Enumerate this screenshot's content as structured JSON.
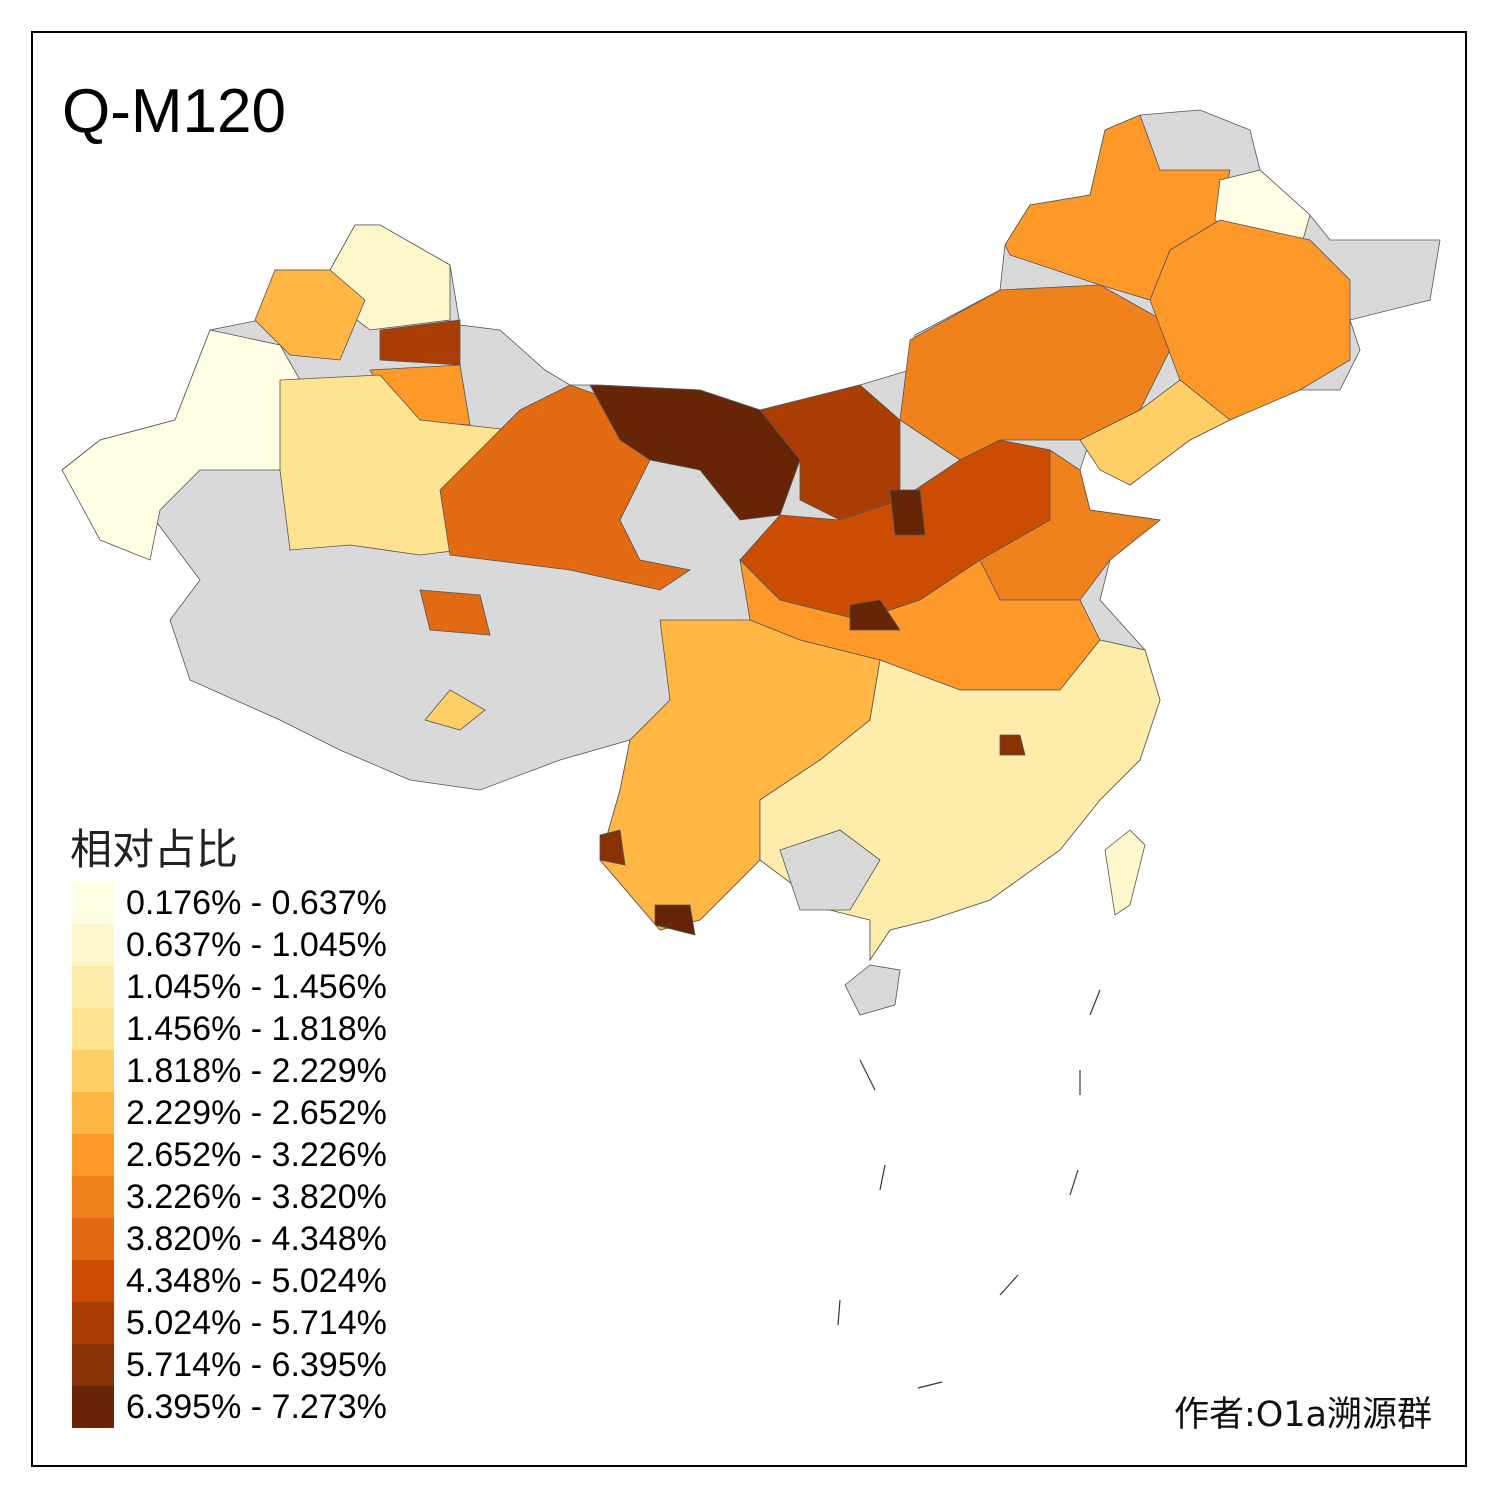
{
  "title": "Q-M120",
  "legend": {
    "title": "相对占比",
    "items": [
      {
        "label": "0.176% - 0.637%",
        "color": "#FFFFE5"
      },
      {
        "label": "0.637% - 1.045%",
        "color": "#FFF7CC"
      },
      {
        "label": "1.045% - 1.456%",
        "color": "#FEEDAA"
      },
      {
        "label": "1.456% - 1.818%",
        "color": "#FEE391"
      },
      {
        "label": "1.818% - 2.229%",
        "color": "#FECF66"
      },
      {
        "label": "2.229% - 2.652%",
        "color": "#FEB645"
      },
      {
        "label": "2.652% - 3.226%",
        "color": "#FE9929"
      },
      {
        "label": "3.226% - 3.820%",
        "color": "#F0821E"
      },
      {
        "label": "3.820% - 4.348%",
        "color": "#E16A12"
      },
      {
        "label": "4.348% - 5.024%",
        "color": "#CC4C02"
      },
      {
        "label": "5.024% - 5.714%",
        "color": "#A93D04"
      },
      {
        "label": "5.714% - 6.395%",
        "color": "#8A3005"
      },
      {
        "label": "6.395% - 7.273%",
        "color": "#662506"
      }
    ]
  },
  "no_data_color": "#D9D9D9",
  "author": "作者:O1a溯源群"
}
